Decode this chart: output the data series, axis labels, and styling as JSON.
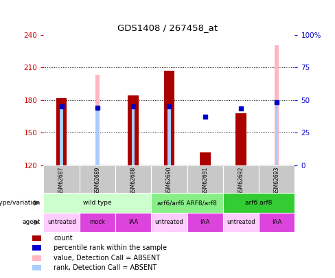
{
  "title": "GDS1408 / 267458_at",
  "samples": [
    "GSM62687",
    "GSM62689",
    "GSM62688",
    "GSM62690",
    "GSM62691",
    "GSM62692",
    "GSM62693"
  ],
  "ylim_left": [
    120,
    240
  ],
  "ylim_right": [
    0,
    100
  ],
  "yticks_left": [
    120,
    150,
    180,
    210,
    240
  ],
  "yticks_right": [
    0,
    25,
    50,
    75,
    100
  ],
  "yticklabels_right": [
    "0",
    "25",
    "50",
    "75",
    "100%"
  ],
  "red_bars_top": [
    182,
    120,
    184,
    207,
    132,
    168,
    120
  ],
  "pink_bars_top": [
    120,
    203,
    120,
    120,
    120,
    120,
    230
  ],
  "blue_squares_y": [
    174,
    173,
    174,
    174,
    165,
    172,
    178
  ],
  "blue_squares_present": [
    true,
    true,
    true,
    true,
    true,
    true,
    true
  ],
  "light_blue_bars_top": [
    174,
    172,
    174,
    174,
    null,
    null,
    178
  ],
  "light_blue_bars_present": [
    true,
    true,
    true,
    true,
    false,
    false,
    true
  ],
  "red_color": "#AA0000",
  "blue_sq_color": "#0000CC",
  "axis_left_color": "#CC0000",
  "axis_right_color": "#0000CC",
  "genotype_groups": [
    {
      "label": "wild type",
      "start": 0,
      "end": 3,
      "color": "#CCFFCC"
    },
    {
      "label": "arf6/arf6 ARF8/arf8",
      "start": 3,
      "end": 5,
      "color": "#88EE88"
    },
    {
      "label": "arf6 arf8",
      "start": 5,
      "end": 7,
      "color": "#33CC33"
    }
  ],
  "agent_groups": [
    {
      "label": "untreated",
      "start": 0,
      "end": 1,
      "color": "#FFCCFF"
    },
    {
      "label": "mock",
      "start": 1,
      "end": 2,
      "color": "#DD44DD"
    },
    {
      "label": "IAA",
      "start": 2,
      "end": 3,
      "color": "#DD44DD"
    },
    {
      "label": "untreated",
      "start": 3,
      "end": 4,
      "color": "#FFCCFF"
    },
    {
      "label": "IAA",
      "start": 4,
      "end": 5,
      "color": "#DD44DD"
    },
    {
      "label": "untreated",
      "start": 5,
      "end": 6,
      "color": "#FFCCFF"
    },
    {
      "label": "IAA",
      "start": 6,
      "end": 7,
      "color": "#DD44DD"
    }
  ],
  "legend_items": [
    {
      "label": "count",
      "color": "#AA0000"
    },
    {
      "label": "percentile rank within the sample",
      "color": "#0000CC"
    },
    {
      "label": "value, Detection Call = ABSENT",
      "color": "#FFB6C1"
    },
    {
      "label": "rank, Detection Call = ABSENT",
      "color": "#AACCFF"
    }
  ]
}
